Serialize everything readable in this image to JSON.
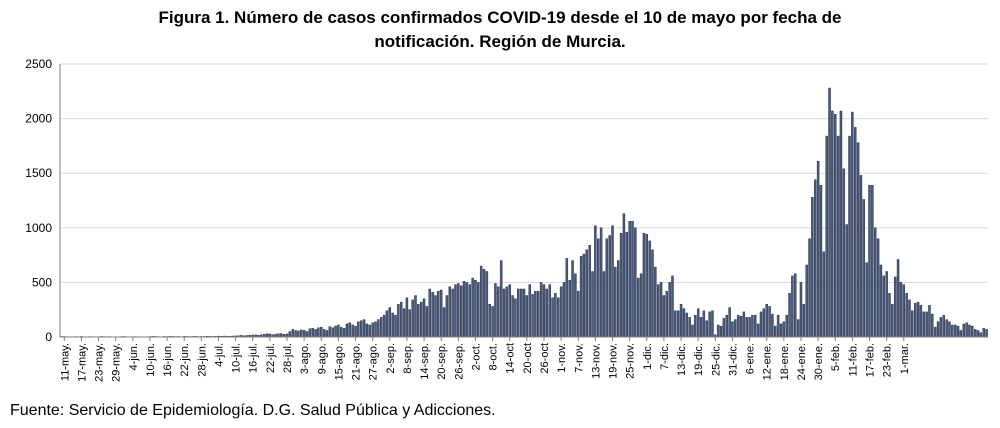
{
  "chart_data": {
    "type": "bar",
    "title_line1": "Figura 1. Número de casos confirmados COVID-19 desde el 10 de mayo por fecha de",
    "title_line2": "notificación. Región de Murcia.",
    "xlabel": "",
    "ylabel": "",
    "ylim": [
      0,
      2500
    ],
    "yticks": [
      0,
      500,
      1000,
      1500,
      2000,
      2500
    ],
    "x_tick_labels": [
      "11-may.",
      "17-may.",
      "23-may.",
      "29-may.",
      "4-jun.",
      "10-jun.",
      "16-jun.",
      "22-jun.",
      "28-jun.",
      "4-jul.",
      "10-jul.",
      "16-jul.",
      "22-jul.",
      "28-jul.",
      "3-ago.",
      "9-ago.",
      "15-ago.",
      "21-ago.",
      "27-ago.",
      "2-sep.",
      "8-sep.",
      "14-sep.",
      "20-sep.",
      "26-sep.",
      "2-oct.",
      "8-oct.",
      "14-oct",
      "20-oct",
      "26-oct",
      "1-nov.",
      "7-nov.",
      "13-nov.",
      "19-nov.",
      "25-nov.",
      "1-dic.",
      "7-dic.",
      "13-dic.",
      "19-dic.",
      "25-dic.",
      "31-dic.",
      "6-ene.",
      "12-ene.",
      "18-ene.",
      "24-ene.",
      "30-ene.",
      "5-feb.",
      "11-feb.",
      "17-feb.",
      "23-feb.",
      "1-mar."
    ],
    "values": [
      5,
      4,
      3,
      2,
      3,
      4,
      2,
      5,
      3,
      2,
      4,
      3,
      3,
      2,
      5,
      4,
      3,
      4,
      2,
      3,
      3,
      4,
      5,
      3,
      2,
      3,
      4,
      3,
      2,
      3,
      3,
      4,
      6,
      5,
      4,
      3,
      5,
      4,
      6,
      5,
      4,
      5,
      3,
      6,
      5,
      4,
      5,
      6,
      4,
      5,
      5,
      7,
      6,
      5,
      6,
      8,
      7,
      9,
      8,
      7,
      9,
      10,
      12,
      15,
      12,
      14,
      16,
      18,
      20,
      16,
      20,
      25,
      30,
      28,
      22,
      26,
      30,
      32,
      25,
      28,
      50,
      70,
      60,
      55,
      65,
      62,
      50,
      75,
      80,
      70,
      85,
      90,
      70,
      60,
      95,
      85,
      100,
      110,
      90,
      80,
      120,
      130,
      110,
      100,
      140,
      150,
      160,
      120,
      110,
      130,
      140,
      160,
      180,
      200,
      240,
      270,
      220,
      200,
      300,
      320,
      260,
      360,
      250,
      340,
      380,
      300,
      320,
      350,
      280,
      440,
      410,
      380,
      420,
      430,
      270,
      380,
      460,
      440,
      480,
      490,
      470,
      510,
      500,
      480,
      540,
      520,
      500,
      650,
      620,
      600,
      300,
      280,
      490,
      460,
      700,
      440,
      460,
      480,
      380,
      350,
      440,
      440,
      440,
      380,
      480,
      390,
      420,
      420,
      500,
      480,
      440,
      480,
      360,
      400,
      360,
      460,
      500,
      720,
      520,
      700,
      580,
      420,
      740,
      760,
      800,
      840,
      600,
      1020,
      900,
      1000,
      600,
      900,
      930,
      1020,
      640,
      700,
      950,
      1130,
      960,
      1060,
      1060,
      1000,
      540,
      580,
      950,
      940,
      880,
      800,
      640,
      480,
      500,
      380,
      420,
      500,
      560,
      240,
      240,
      300,
      260,
      220,
      180,
      110,
      200,
      260,
      180,
      240,
      150,
      230,
      240,
      20,
      110,
      100,
      170,
      200,
      270,
      140,
      160,
      200,
      190,
      230,
      180,
      180,
      200,
      200,
      120,
      230,
      260,
      300,
      280,
      210,
      100,
      200,
      120,
      140,
      200,
      400,
      560,
      580,
      160,
      500,
      300,
      660,
      900,
      1280,
      1440,
      1610,
      1390,
      780,
      1840,
      2280,
      2070,
      2040,
      1840,
      2070,
      1540,
      1030,
      1840,
      2060,
      1920,
      1780,
      1480,
      1260,
      680,
      1390,
      1390,
      1000,
      900,
      660,
      560,
      600,
      400,
      300,
      550,
      710,
      500,
      480,
      400,
      340,
      240,
      310,
      320,
      290,
      230,
      230,
      290,
      210,
      90,
      140,
      180,
      200,
      160,
      140,
      110,
      110,
      100,
      60,
      120,
      130,
      110,
      100,
      70,
      60,
      40,
      80,
      70
    ]
  },
  "source_text": "Fuente: Servicio de Epidemiología. D.G. Salud Pública y Adicciones.",
  "colors": {
    "bar_fill": "#4a5a7a",
    "bar_stroke": "#1e2a44",
    "gridline": "#d9d9d9",
    "axis": "#808080"
  }
}
